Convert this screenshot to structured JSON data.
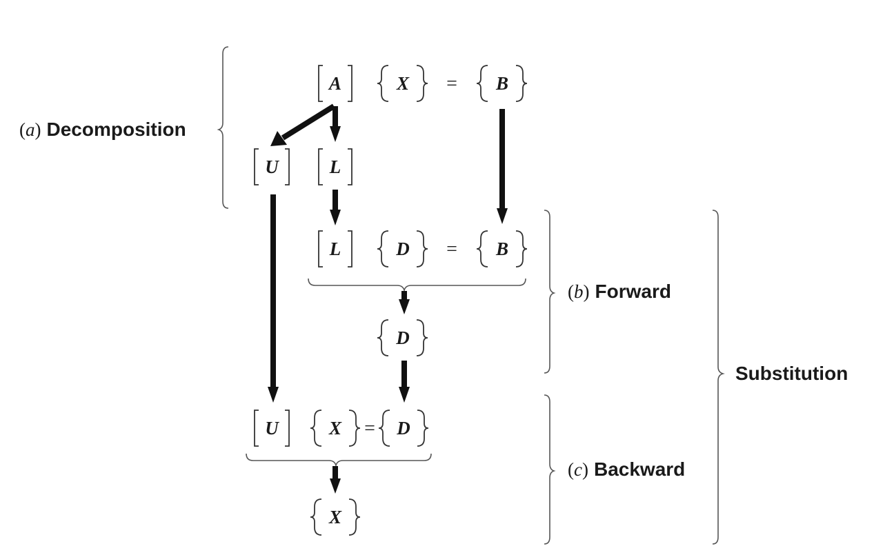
{
  "symbols": {
    "A": "A",
    "X": "X",
    "B": "B",
    "U": "U",
    "L": "L",
    "D": "D",
    "eq": "="
  },
  "labels": {
    "decomposition": {
      "letter": "a",
      "text": "Decomposition"
    },
    "forward": {
      "letter": "b",
      "text": "Forward"
    },
    "backward": {
      "letter": "c",
      "text": "Backward"
    },
    "substitution": "Substitution"
  }
}
